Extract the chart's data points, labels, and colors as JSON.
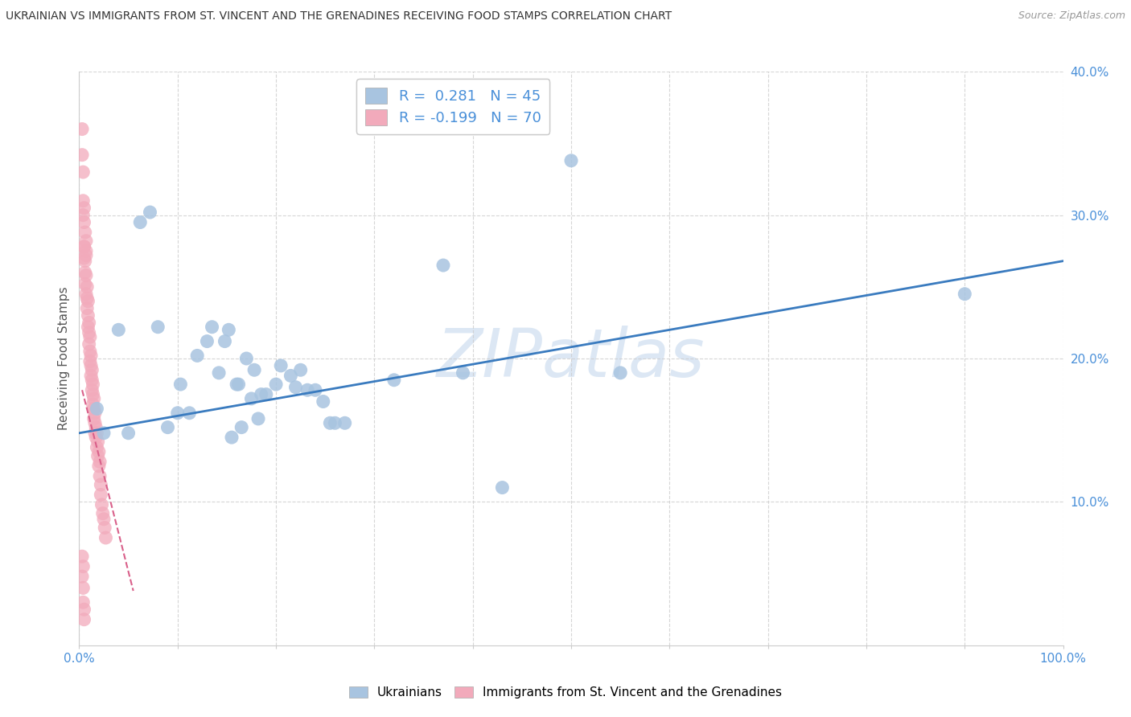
{
  "title": "UKRAINIAN VS IMMIGRANTS FROM ST. VINCENT AND THE GRENADINES RECEIVING FOOD STAMPS CORRELATION CHART",
  "source": "Source: ZipAtlas.com",
  "ylabel": "Receiving Food Stamps",
  "xlim": [
    0,
    1.0
  ],
  "ylim": [
    0,
    0.4
  ],
  "watermark": "ZIPatlas",
  "legend_blue_label": "R =  0.281   N = 45",
  "legend_pink_label": "R = -0.199   N = 70",
  "blue_color": "#a8c4e0",
  "pink_color": "#f2aabb",
  "blue_line_color": "#3a7bbf",
  "pink_line_color": "#d9608a",
  "blue_scatter": [
    [
      0.018,
      0.165
    ],
    [
      0.025,
      0.148
    ],
    [
      0.04,
      0.22
    ],
    [
      0.05,
      0.148
    ],
    [
      0.062,
      0.295
    ],
    [
      0.072,
      0.302
    ],
    [
      0.08,
      0.222
    ],
    [
      0.09,
      0.152
    ],
    [
      0.1,
      0.162
    ],
    [
      0.103,
      0.182
    ],
    [
      0.112,
      0.162
    ],
    [
      0.12,
      0.202
    ],
    [
      0.13,
      0.212
    ],
    [
      0.135,
      0.222
    ],
    [
      0.142,
      0.19
    ],
    [
      0.148,
      0.212
    ],
    [
      0.152,
      0.22
    ],
    [
      0.16,
      0.182
    ],
    [
      0.162,
      0.182
    ],
    [
      0.165,
      0.152
    ],
    [
      0.17,
      0.2
    ],
    [
      0.175,
      0.172
    ],
    [
      0.178,
      0.192
    ],
    [
      0.182,
      0.158
    ],
    [
      0.185,
      0.175
    ],
    [
      0.19,
      0.175
    ],
    [
      0.2,
      0.182
    ],
    [
      0.205,
      0.195
    ],
    [
      0.215,
      0.188
    ],
    [
      0.22,
      0.18
    ],
    [
      0.225,
      0.192
    ],
    [
      0.232,
      0.178
    ],
    [
      0.24,
      0.178
    ],
    [
      0.248,
      0.17
    ],
    [
      0.255,
      0.155
    ],
    [
      0.26,
      0.155
    ],
    [
      0.27,
      0.155
    ],
    [
      0.32,
      0.185
    ],
    [
      0.37,
      0.265
    ],
    [
      0.39,
      0.19
    ],
    [
      0.43,
      0.11
    ],
    [
      0.5,
      0.338
    ],
    [
      0.55,
      0.19
    ],
    [
      0.9,
      0.245
    ],
    [
      0.155,
      0.145
    ]
  ],
  "pink_scatter": [
    [
      0.003,
      0.36
    ],
    [
      0.003,
      0.342
    ],
    [
      0.004,
      0.33
    ],
    [
      0.005,
      0.278
    ],
    [
      0.005,
      0.27
    ],
    [
      0.005,
      0.278
    ],
    [
      0.006,
      0.268
    ],
    [
      0.007,
      0.272
    ],
    [
      0.007,
      0.275
    ],
    [
      0.006,
      0.26
    ],
    [
      0.006,
      0.252
    ],
    [
      0.007,
      0.258
    ],
    [
      0.007,
      0.245
    ],
    [
      0.008,
      0.25
    ],
    [
      0.008,
      0.242
    ],
    [
      0.008,
      0.235
    ],
    [
      0.009,
      0.24
    ],
    [
      0.009,
      0.23
    ],
    [
      0.009,
      0.222
    ],
    [
      0.01,
      0.225
    ],
    [
      0.01,
      0.218
    ],
    [
      0.01,
      0.21
    ],
    [
      0.011,
      0.215
    ],
    [
      0.011,
      0.205
    ],
    [
      0.011,
      0.198
    ],
    [
      0.012,
      0.202
    ],
    [
      0.012,
      0.195
    ],
    [
      0.012,
      0.188
    ],
    [
      0.013,
      0.192
    ],
    [
      0.013,
      0.185
    ],
    [
      0.013,
      0.178
    ],
    [
      0.014,
      0.182
    ],
    [
      0.014,
      0.175
    ],
    [
      0.014,
      0.168
    ],
    [
      0.015,
      0.172
    ],
    [
      0.015,
      0.165
    ],
    [
      0.015,
      0.158
    ],
    [
      0.016,
      0.162
    ],
    [
      0.016,
      0.155
    ],
    [
      0.016,
      0.148
    ],
    [
      0.017,
      0.152
    ],
    [
      0.017,
      0.145
    ],
    [
      0.018,
      0.148
    ],
    [
      0.018,
      0.138
    ],
    [
      0.019,
      0.142
    ],
    [
      0.019,
      0.132
    ],
    [
      0.02,
      0.135
    ],
    [
      0.02,
      0.125
    ],
    [
      0.021,
      0.128
    ],
    [
      0.021,
      0.118
    ],
    [
      0.022,
      0.112
    ],
    [
      0.022,
      0.105
    ],
    [
      0.023,
      0.098
    ],
    [
      0.024,
      0.092
    ],
    [
      0.025,
      0.088
    ],
    [
      0.026,
      0.082
    ],
    [
      0.027,
      0.075
    ],
    [
      0.005,
      0.295
    ],
    [
      0.006,
      0.288
    ],
    [
      0.007,
      0.282
    ],
    [
      0.004,
      0.31
    ],
    [
      0.004,
      0.3
    ],
    [
      0.005,
      0.305
    ],
    [
      0.003,
      0.062
    ],
    [
      0.003,
      0.048
    ],
    [
      0.004,
      0.055
    ],
    [
      0.004,
      0.04
    ],
    [
      0.004,
      0.03
    ],
    [
      0.005,
      0.025
    ],
    [
      0.005,
      0.018
    ]
  ],
  "blue_line": [
    [
      0.0,
      0.148
    ],
    [
      1.0,
      0.268
    ]
  ],
  "pink_line": [
    [
      0.003,
      0.178
    ],
    [
      0.055,
      0.038
    ]
  ],
  "background_color": "#ffffff",
  "grid_color": "#cccccc",
  "tick_color": "#4a90d9",
  "title_color": "#333333",
  "source_color": "#999999",
  "ylabel_color": "#555555"
}
